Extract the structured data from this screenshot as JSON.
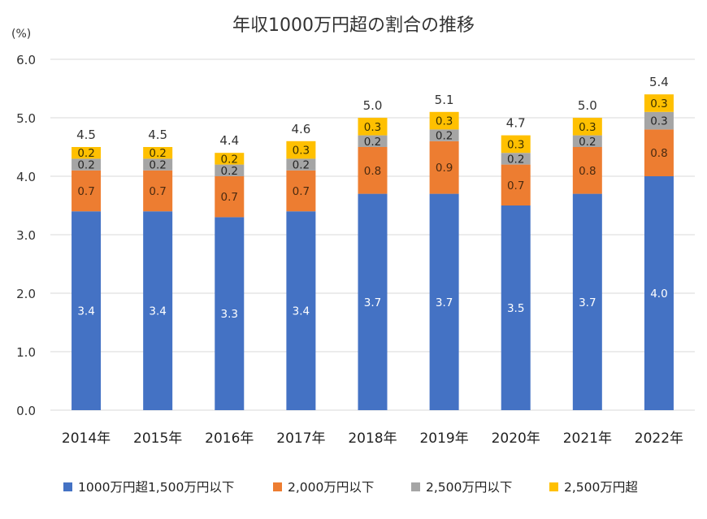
{
  "chart_data": {
    "type": "bar",
    "stacked": true,
    "title": "年収1000万円超の割合の推移",
    "ylabel": "(%)",
    "xlabel": "",
    "ylim": [
      0,
      6
    ],
    "yticks": [
      "0.0",
      "1.0",
      "2.0",
      "3.0",
      "4.0",
      "5.0",
      "6.0"
    ],
    "grid": true,
    "legend_position": "bottom",
    "categories": [
      "2014年",
      "2015年",
      "2016年",
      "2017年",
      "2018年",
      "2019年",
      "2020年",
      "2021年",
      "2022年"
    ],
    "series": [
      {
        "name": "1000万円超1,500万円以下",
        "color": "#4472c4",
        "label_color": "#ffffff",
        "values": [
          3.4,
          3.4,
          3.3,
          3.4,
          3.7,
          3.7,
          3.5,
          3.7,
          4.0
        ]
      },
      {
        "name": "2,000万円以下",
        "color": "#ed7d31",
        "label_color": "#4a2a10",
        "values": [
          0.7,
          0.7,
          0.7,
          0.7,
          0.8,
          0.9,
          0.7,
          0.8,
          0.8
        ]
      },
      {
        "name": "2,500万円以下",
        "color": "#a5a5a5",
        "label_color": "#262626",
        "values": [
          0.2,
          0.2,
          0.2,
          0.2,
          0.2,
          0.2,
          0.2,
          0.2,
          0.3
        ]
      },
      {
        "name": "2,500万円超",
        "color": "#ffc000",
        "label_color": "#3a3000",
        "values": [
          0.2,
          0.2,
          0.2,
          0.3,
          0.3,
          0.3,
          0.3,
          0.3,
          0.3
        ]
      }
    ],
    "totals": [
      "4.5",
      "4.5",
      "4.4",
      "4.6",
      "5.0",
      "5.1",
      "4.7",
      "5.0",
      "5.4"
    ]
  }
}
